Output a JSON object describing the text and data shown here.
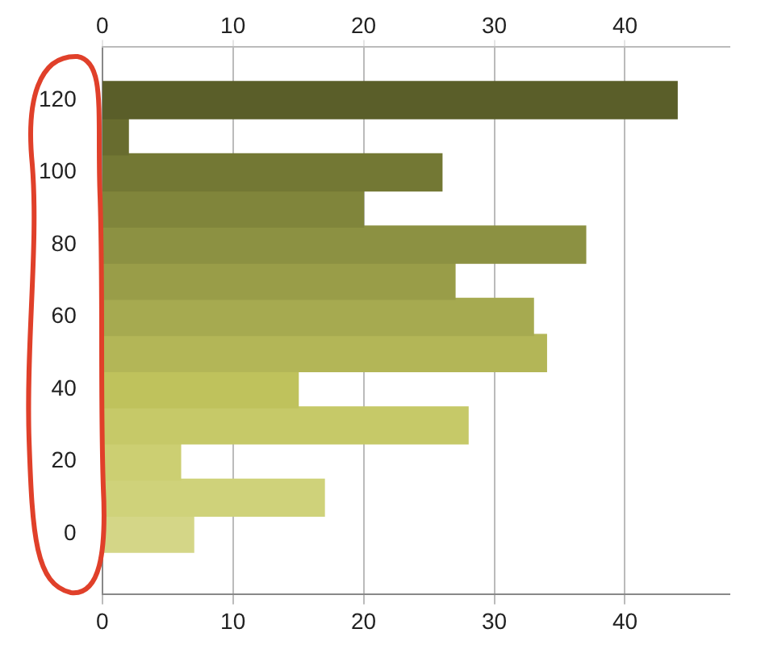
{
  "chart_data": {
    "type": "bar",
    "orientation": "horizontal",
    "x": [
      0,
      10,
      20,
      30,
      40,
      50,
      60,
      70,
      80,
      90,
      100,
      110,
      120
    ],
    "values": [
      7,
      17,
      6,
      28,
      15,
      34,
      33,
      27,
      37,
      20,
      26,
      2,
      44
    ],
    "colors": [
      "#d4d687",
      "#cfd27a",
      "#cccf72",
      "#c6c968",
      "#bfc25c",
      "#b3b657",
      "#a6aa50",
      "#999d48",
      "#8c9142",
      "#80853b",
      "#737834",
      "#686c2f",
      "#5a5e29"
    ],
    "xlim": [
      0,
      48
    ],
    "xticks": [
      0,
      10,
      20,
      30,
      40
    ],
    "x2lim": [
      0,
      48
    ],
    "x2ticks": [
      0,
      10,
      20,
      30,
      40
    ],
    "ylim": [
      -6,
      124
    ],
    "yticks": [
      0,
      20,
      40,
      60,
      80,
      100,
      120
    ],
    "grid": "x",
    "legend": false
  }
}
